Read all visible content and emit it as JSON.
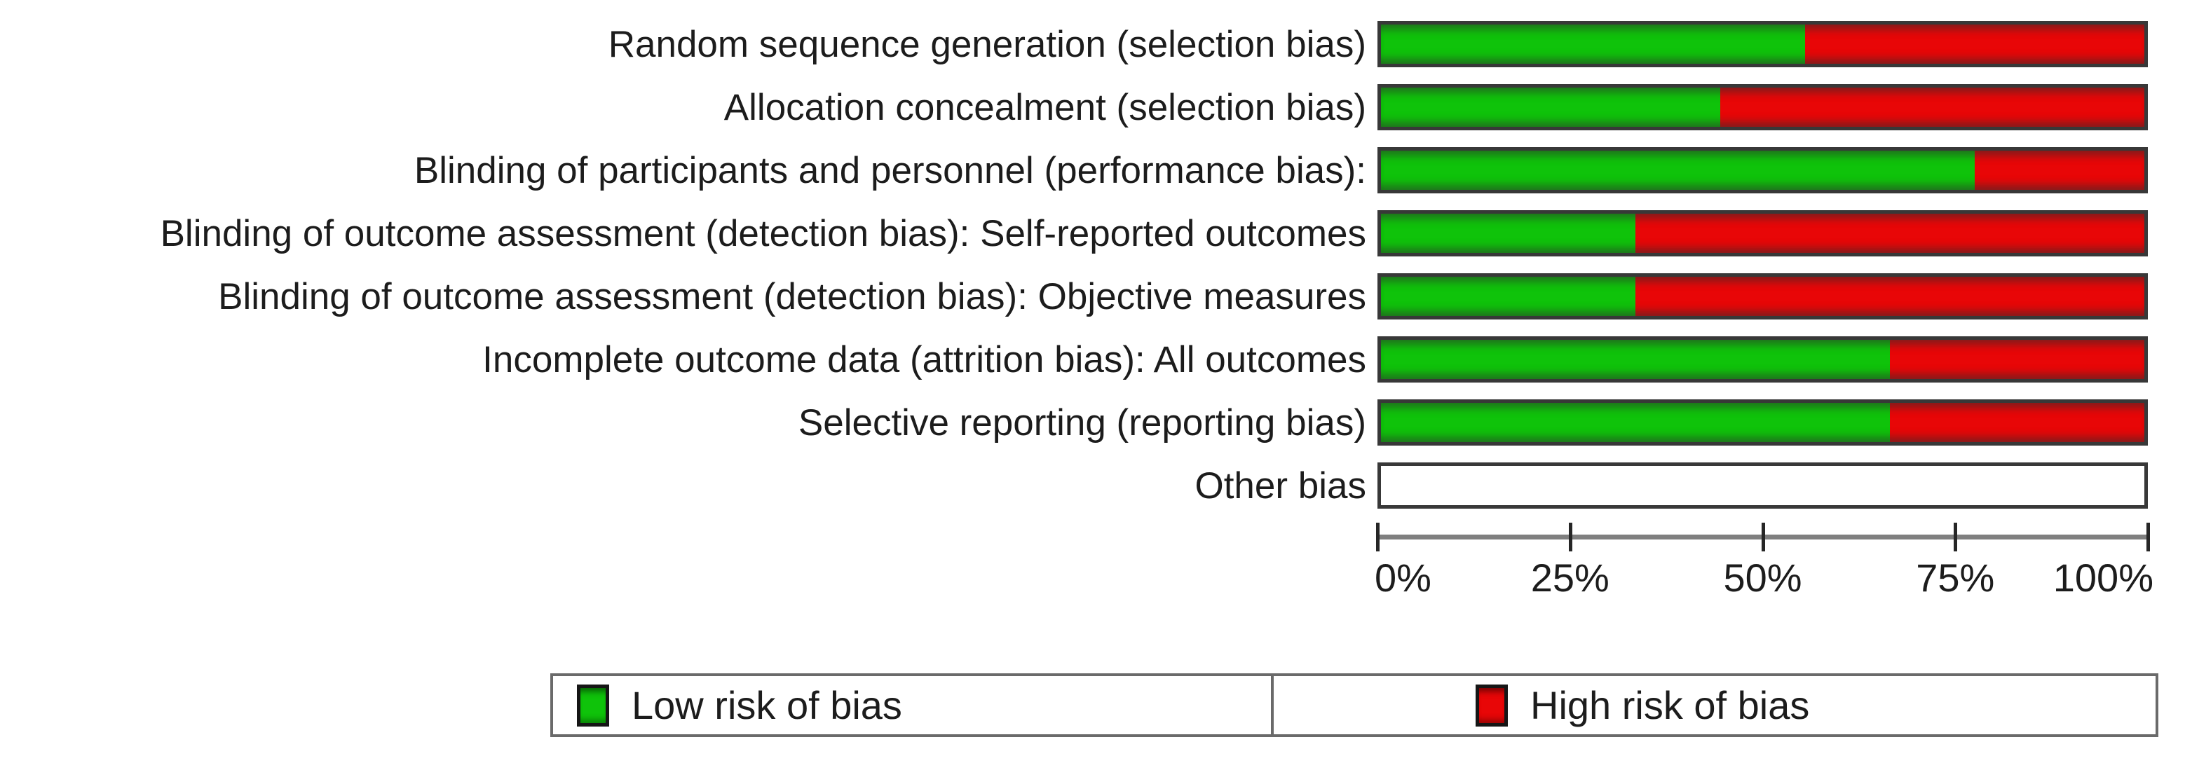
{
  "chart_data": {
    "type": "bar",
    "variant": "horizontal-stacked-100pct",
    "title": "",
    "categories": [
      "Random sequence generation (selection bias)",
      "Allocation concealment (selection bias)",
      "Blinding of participants and personnel (performance bias):",
      "Blinding of outcome assessment (detection bias): Self-reported outcomes",
      "Blinding of outcome assessment (detection bias): Objective measures",
      "Incomplete outcome data (attrition bias): All outcomes",
      "Selective reporting (reporting bias)",
      "Other bias"
    ],
    "series": [
      {
        "name": "Low risk of bias",
        "color": "#0fc30a",
        "values": [
          55.6,
          44.4,
          77.8,
          33.3,
          33.3,
          66.7,
          66.7,
          0
        ]
      },
      {
        "name": "High risk of bias",
        "color": "#e80607",
        "values": [
          44.4,
          55.6,
          22.2,
          66.7,
          66.7,
          33.3,
          33.3,
          0
        ]
      }
    ],
    "xlabel": "",
    "ylabel": "",
    "xlim": [
      0,
      100
    ],
    "x_ticks": [
      {
        "label": "0%",
        "pos": 0
      },
      {
        "label": "25%",
        "pos": 25
      },
      {
        "label": "50%",
        "pos": 50
      },
      {
        "label": "75%",
        "pos": 75
      },
      {
        "label": "100%",
        "pos": 100
      }
    ],
    "grid": false,
    "legend_position": "bottom"
  },
  "legend": {
    "low_label": "Low risk of bias",
    "high_label": "High risk of bias"
  },
  "colors": {
    "low_risk": "#0fc30a",
    "high_risk": "#e80607",
    "bar_border": "#383838",
    "axis_line": "#7f7f7f",
    "legend_border": "#6a6a6a",
    "text": "#1c1c1c"
  }
}
